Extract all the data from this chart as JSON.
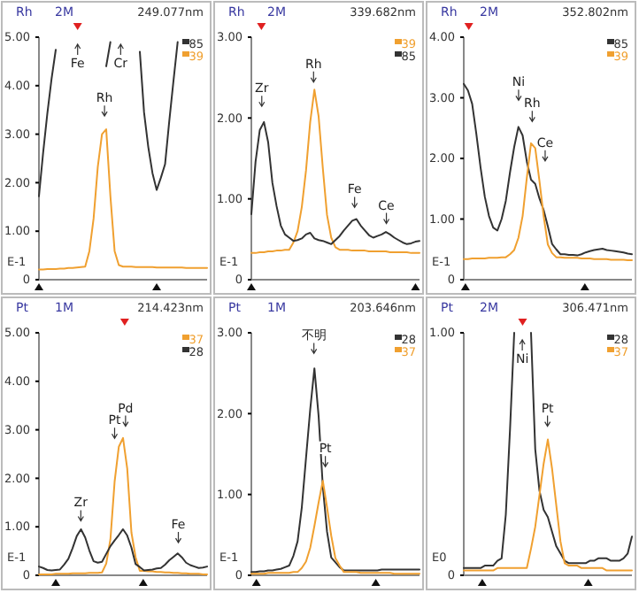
{
  "chart_data": [
    {
      "type": "line",
      "title": "Rh",
      "subtitle": "2M",
      "legend": "top right",
      "tick_labels": "y",
      "categories": [
        null,
        null,
        null,
        null,
        null,
        null,
        null,
        null,
        null,
        null,
        null,
        null,
        null,
        null,
        null,
        null,
        null,
        null,
        null,
        null,
        null,
        null,
        null,
        null,
        null,
        null,
        null,
        null,
        null,
        null,
        null,
        null,
        null,
        null,
        null,
        null,
        null,
        null,
        null,
        null,
        null
      ],
      "ylim": [
        0,
        5
      ],
      "yticks": [
        {
          "value": 0,
          "label": "0"
        },
        {
          "value": 1,
          "label": "1.00"
        },
        {
          "value": 2,
          "label": "2.00"
        },
        {
          "value": 3,
          "label": "3.00"
        },
        {
          "value": 4,
          "label": "4.00"
        },
        {
          "value": 5,
          "label": "5.00"
        }
      ],
      "annotations": [
        "249.077nm",
        "E-1",
        "Fe",
        "Rh",
        "Cr"
      ],
      "series": [
        {
          "name": "85",
          "color": "#333333",
          "values": [
            1.72,
            2.62,
            3.43,
            4.14,
            4.74,
            null,
            null,
            null,
            null,
            null,
            null,
            null,
            null,
            null,
            null,
            null,
            4.4,
            4.9,
            null,
            null,
            null,
            null,
            null,
            null,
            4.7,
            3.45,
            2.74,
            2.2,
            1.85,
            2.1,
            2.38,
            3.27,
            4.1,
            4.9,
            null,
            null,
            null,
            null,
            null,
            null,
            null
          ]
        },
        {
          "name": "39",
          "color": "#f0a030",
          "values": [
            0.21,
            0.21,
            0.22,
            0.22,
            0.22,
            0.23,
            0.23,
            0.24,
            0.24,
            0.25,
            0.26,
            0.27,
            0.59,
            1.26,
            2.33,
            3.0,
            3.1,
            1.72,
            0.59,
            0.3,
            0.27,
            0.27,
            0.27,
            0.26,
            0.26,
            0.26,
            0.26,
            0.26,
            0.25,
            0.25,
            0.25,
            0.25,
            0.25,
            0.25,
            0.25,
            0.24,
            0.24,
            0.24,
            0.24,
            0.24,
            0.24
          ]
        }
      ]
    },
    {
      "type": "line",
      "title": "Rh",
      "subtitle": "2M",
      "legend": "top right",
      "tick_labels": "y",
      "categories": [
        null,
        null,
        null,
        null,
        null,
        null,
        null,
        null,
        null,
        null,
        null,
        null,
        null,
        null,
        null,
        null,
        null,
        null,
        null,
        null,
        null,
        null,
        null,
        null,
        null,
        null,
        null,
        null,
        null,
        null,
        null,
        null,
        null,
        null,
        null,
        null,
        null,
        null,
        null,
        null,
        null
      ],
      "ylim": [
        0,
        3
      ],
      "yticks": [
        {
          "value": 0,
          "label": "0"
        },
        {
          "value": 1,
          "label": "1.00"
        },
        {
          "value": 2,
          "label": "2.00"
        },
        {
          "value": 3,
          "label": "3.00"
        }
      ],
      "annotations": [
        "339.682nm",
        "E-1",
        "Zr",
        "Rh",
        "Fe",
        "Ce"
      ],
      "series": [
        {
          "name": "39",
          "color": "#f0a030",
          "values": [
            0.33,
            0.33,
            0.34,
            0.34,
            0.35,
            0.35,
            0.36,
            0.36,
            0.37,
            0.37,
            0.46,
            0.6,
            0.9,
            1.35,
            1.95,
            2.35,
            2.02,
            1.38,
            0.8,
            0.52,
            0.4,
            0.37,
            0.37,
            0.37,
            0.36,
            0.36,
            0.36,
            0.36,
            0.35,
            0.35,
            0.35,
            0.35,
            0.35,
            0.34,
            0.34,
            0.34,
            0.34,
            0.34,
            0.33,
            0.33,
            0.33
          ]
        },
        {
          "name": "85",
          "color": "#333333",
          "values": [
            0.81,
            1.46,
            1.85,
            1.95,
            1.7,
            1.2,
            0.91,
            0.67,
            0.56,
            0.52,
            0.48,
            0.49,
            0.51,
            0.56,
            0.58,
            0.51,
            0.49,
            0.48,
            0.46,
            0.44,
            0.49,
            0.54,
            0.61,
            0.67,
            0.73,
            0.75,
            0.67,
            0.61,
            0.55,
            0.52,
            0.54,
            0.56,
            0.59,
            0.56,
            0.52,
            0.49,
            0.46,
            0.44,
            0.45,
            0.47,
            0.48
          ]
        }
      ]
    },
    {
      "type": "line",
      "title": "Rh",
      "subtitle": "2M",
      "legend": "top right",
      "tick_labels": "y",
      "categories": [
        null,
        null,
        null,
        null,
        null,
        null,
        null,
        null,
        null,
        null,
        null,
        null,
        null,
        null,
        null,
        null,
        null,
        null,
        null,
        null,
        null,
        null,
        null,
        null,
        null,
        null,
        null,
        null,
        null,
        null,
        null,
        null,
        null,
        null,
        null,
        null,
        null,
        null,
        null,
        null,
        null
      ],
      "ylim": [
        0,
        4
      ],
      "yticks": [
        {
          "value": 0,
          "label": "0"
        },
        {
          "value": 1,
          "label": "1.00"
        },
        {
          "value": 2,
          "label": "2.00"
        },
        {
          "value": 3,
          "label": "3.00"
        },
        {
          "value": 4,
          "label": "4.00"
        }
      ],
      "annotations": [
        "352.802nm",
        "E-1",
        "Ni",
        "Rh",
        "Ce"
      ],
      "series": [
        {
          "name": "85",
          "color": "#333333",
          "values": [
            3.23,
            3.12,
            2.9,
            2.4,
            1.85,
            1.37,
            1.05,
            0.86,
            0.81,
            1.0,
            1.3,
            1.77,
            2.19,
            2.52,
            2.38,
            1.95,
            1.65,
            1.58,
            1.34,
            1.15,
            0.88,
            0.59,
            0.5,
            0.42,
            0.42,
            0.41,
            0.41,
            0.4,
            0.42,
            0.45,
            0.47,
            0.49,
            0.5,
            0.51,
            0.49,
            0.48,
            0.47,
            0.46,
            0.45,
            0.43,
            0.42
          ]
        },
        {
          "name": "39",
          "color": "#f0a030",
          "values": [
            0.34,
            0.34,
            0.35,
            0.35,
            0.35,
            0.35,
            0.36,
            0.36,
            0.36,
            0.37,
            0.37,
            0.42,
            0.49,
            0.69,
            1.05,
            1.68,
            2.25,
            2.17,
            1.63,
            1.05,
            0.58,
            0.44,
            0.37,
            0.37,
            0.36,
            0.36,
            0.36,
            0.36,
            0.35,
            0.35,
            0.35,
            0.34,
            0.34,
            0.34,
            0.34,
            0.33,
            0.33,
            0.33,
            0.33,
            0.32,
            0.32
          ]
        }
      ]
    },
    {
      "type": "line",
      "title": "Pt",
      "subtitle": "1M",
      "legend": "top right",
      "tick_labels": "y",
      "categories": [
        null,
        null,
        null,
        null,
        null,
        null,
        null,
        null,
        null,
        null,
        null,
        null,
        null,
        null,
        null,
        null,
        null,
        null,
        null,
        null,
        null,
        null,
        null,
        null,
        null,
        null,
        null,
        null,
        null,
        null,
        null,
        null,
        null,
        null,
        null,
        null,
        null,
        null,
        null,
        null,
        null
      ],
      "ylim": [
        0,
        5
      ],
      "yticks": [
        {
          "value": 0,
          "label": "0"
        },
        {
          "value": 1,
          "label": "1.00"
        },
        {
          "value": 2,
          "label": "2.00"
        },
        {
          "value": 3,
          "label": "3.00"
        },
        {
          "value": 4,
          "label": "4.00"
        },
        {
          "value": 5,
          "label": "5.00"
        }
      ],
      "annotations": [
        "214.423nm",
        "E-1",
        "Zr",
        "Pt",
        "Pd",
        "Fe"
      ],
      "series": [
        {
          "name": "37",
          "color": "#f0a030",
          "values": [
            0.02,
            0.02,
            0.02,
            0.02,
            0.03,
            0.03,
            0.03,
            0.03,
            0.04,
            0.04,
            0.04,
            0.04,
            0.05,
            0.05,
            0.05,
            0.06,
            0.24,
            0.74,
            1.93,
            2.65,
            2.83,
            2.2,
            0.88,
            0.37,
            0.09,
            0.09,
            0.08,
            0.08,
            0.07,
            0.07,
            0.06,
            0.06,
            0.05,
            0.05,
            0.04,
            0.04,
            0.03,
            0.03,
            0.03,
            0.02,
            0.02
          ]
        },
        {
          "name": "28",
          "color": "#333333",
          "values": [
            0.18,
            0.15,
            0.11,
            0.1,
            0.11,
            0.12,
            0.22,
            0.34,
            0.56,
            0.81,
            0.95,
            0.78,
            0.51,
            0.29,
            0.26,
            0.28,
            0.44,
            0.6,
            0.72,
            0.83,
            0.95,
            0.82,
            0.57,
            0.23,
            0.17,
            0.1,
            0.11,
            0.12,
            0.14,
            0.15,
            0.22,
            0.31,
            0.38,
            0.45,
            0.37,
            0.26,
            0.21,
            0.18,
            0.15,
            0.16,
            0.18
          ]
        }
      ]
    },
    {
      "type": "line",
      "title": "Pt",
      "subtitle": "1M",
      "legend": "top right",
      "tick_labels": "y",
      "categories": [
        null,
        null,
        null,
        null,
        null,
        null,
        null,
        null,
        null,
        null,
        null,
        null,
        null,
        null,
        null,
        null,
        null,
        null,
        null,
        null,
        null,
        null,
        null,
        null,
        null,
        null,
        null,
        null,
        null,
        null,
        null,
        null,
        null,
        null,
        null,
        null,
        null,
        null,
        null,
        null,
        null
      ],
      "ylim": [
        0,
        3
      ],
      "yticks": [
        {
          "value": 0,
          "label": "0"
        },
        {
          "value": 1,
          "label": "1.00"
        },
        {
          "value": 2,
          "label": "2.00"
        },
        {
          "value": 3,
          "label": "3.00"
        }
      ],
      "annotations": [
        "203.646nm",
        "E-1",
        "不明",
        "Pt"
      ],
      "series": [
        {
          "name": "28",
          "color": "#333333",
          "values": [
            0.04,
            0.04,
            0.05,
            0.05,
            0.06,
            0.06,
            0.07,
            0.08,
            0.1,
            0.12,
            0.24,
            0.42,
            0.84,
            1.45,
            2.05,
            2.56,
            1.97,
            1.1,
            0.54,
            0.22,
            0.16,
            0.1,
            0.06,
            0.06,
            0.06,
            0.06,
            0.06,
            0.06,
            0.06,
            0.06,
            0.06,
            0.07,
            0.07,
            0.07,
            0.07,
            0.07,
            0.07,
            0.07,
            0.07,
            0.07,
            0.07
          ]
        },
        {
          "name": "37",
          "color": "#f0a030",
          "values": [
            0.02,
            0.02,
            0.02,
            0.02,
            0.03,
            0.03,
            0.03,
            0.03,
            0.03,
            0.03,
            0.04,
            0.04,
            0.09,
            0.17,
            0.34,
            0.61,
            0.9,
            1.17,
            0.84,
            0.49,
            0.21,
            0.12,
            0.04,
            0.04,
            0.04,
            0.04,
            0.03,
            0.03,
            0.03,
            0.03,
            0.03,
            0.03,
            0.03,
            0.03,
            0.02,
            0.02,
            0.02,
            0.02,
            0.02,
            0.02,
            0.02
          ]
        }
      ]
    },
    {
      "type": "line",
      "title": "Pt",
      "subtitle": "2M",
      "legend": "top right",
      "tick_labels": "y",
      "categories": [
        null,
        null,
        null,
        null,
        null,
        null,
        null,
        null,
        null,
        null,
        null,
        null,
        null,
        null,
        null,
        null,
        null,
        null,
        null,
        null,
        null,
        null,
        null,
        null,
        null,
        null,
        null,
        null,
        null,
        null,
        null,
        null,
        null,
        null,
        null,
        null,
        null,
        null,
        null,
        null,
        null
      ],
      "ylim": [
        0,
        1
      ],
      "yticks": [
        {
          "value": 0,
          "label": "0"
        },
        {
          "value": 1,
          "label": "1.00"
        }
      ],
      "annotations": [
        "306.471nm",
        "E0",
        "Ni",
        "Pt"
      ],
      "series": [
        {
          "name": "28",
          "color": "#333333",
          "values": [
            0.03,
            0.03,
            0.03,
            0.03,
            0.03,
            0.04,
            0.04,
            0.04,
            0.06,
            0.07,
            0.25,
            0.6,
            1.0,
            null,
            null,
            null,
            1.0,
            0.52,
            0.35,
            0.27,
            0.24,
            0.18,
            0.12,
            0.09,
            0.06,
            0.05,
            0.05,
            0.05,
            0.05,
            0.05,
            0.06,
            0.06,
            0.07,
            0.07,
            0.07,
            0.06,
            0.06,
            0.06,
            0.07,
            0.09,
            0.16
          ]
        },
        {
          "name": "37",
          "color": "#f0a030",
          "values": [
            0.02,
            0.02,
            0.02,
            0.02,
            0.02,
            0.02,
            0.02,
            0.02,
            0.03,
            0.03,
            0.03,
            0.03,
            0.03,
            0.03,
            0.03,
            0.03,
            0.11,
            0.2,
            0.33,
            0.46,
            0.56,
            0.44,
            0.29,
            0.14,
            0.05,
            0.04,
            0.04,
            0.04,
            0.03,
            0.03,
            0.03,
            0.03,
            0.03,
            0.03,
            0.02,
            0.02,
            0.02,
            0.02,
            0.02,
            0.02,
            0.02
          ]
        }
      ]
    }
  ]
}
